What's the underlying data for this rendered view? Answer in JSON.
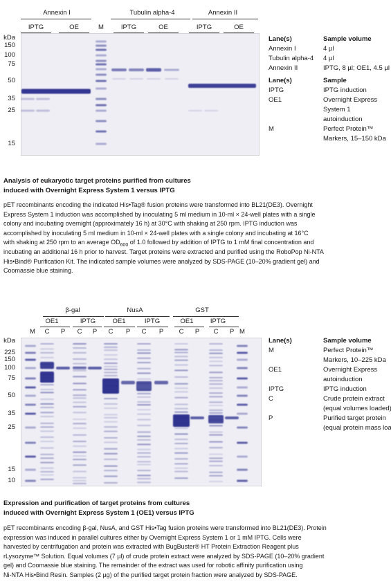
{
  "figures": [
    {
      "gel": {
        "groups": [
          {
            "label": "Annexin I",
            "lanes": [
              "IPTG",
              "OE"
            ]
          },
          {
            "label": "Tubulin alpha-4",
            "lanes": [
              "IPTG",
              "OE"
            ]
          },
          {
            "label": "Annexin II",
            "lanes": [
              "IPTG",
              "OE"
            ]
          }
        ],
        "marker_lane": "M",
        "unit": "kDa",
        "markers": [
          150,
          100,
          75,
          50,
          35,
          25,
          15
        ]
      },
      "legend": {
        "sections": [
          {
            "header": [
              "Lane(s)",
              "Sample volume"
            ],
            "rows": [
              [
                "Annexin I",
                "4 µl"
              ],
              [
                "Tubulin alpha-4",
                "4 µl"
              ],
              [
                "Annexin II",
                "IPTG, 8 µl; OE1, 4.5 µl"
              ]
            ]
          },
          {
            "header": [
              "Lane(s)",
              "Sample"
            ],
            "rows": [
              [
                "IPTG",
                "IPTG induction"
              ],
              [
                "OE1",
                [
                  "Overnight Express",
                  "System 1",
                  "autoinduction"
                ]
              ],
              [
                "M",
                [
                  "Perfect Protein™",
                  "Markers, 15–150 kDa"
                ]
              ]
            ]
          }
        ]
      },
      "caption": {
        "title": [
          "Analysis of eukaryotic target proteins purified from cultures",
          "induced with Overnight Express System 1 versus IPTG"
        ],
        "body": [
          "pET recombinants encoding the indicated His•Tag® fusion proteins were transformed into BL21(DE3). Overnight",
          "Express System 1 induction was accomplished by inoculating 5 ml medium in 10-ml × 24-well plates with a single",
          "colony and incubating overnight (approximately 16 h) at 30°C with shaking at 250 rpm. IPTG induction was",
          "accomplished by inoculating 5 ml medium in 10-ml × 24-well plates with a single colony and incubating at 16°C",
          [
            "with shaking at 250 rpm to an average OD",
            "600",
            " of 1.0 followed by addition of IPTG to 1 mM final concentration and"
          ],
          "incubating an additional 16 h prior to harvest. Target proteins were extracted and purified using the RoboPop Ni-NTA",
          "His•Bind® Purification Kit. The indicated sample volumes were analyzed by SDS-PAGE (10–20% gradient gel) and",
          "Coomassie blue staining."
        ]
      }
    },
    {
      "gel": {
        "groups": [
          {
            "label": "β-gal",
            "conditions": [
              {
                "label": "OE1",
                "lanes": [
                  "C",
                  "P"
                ]
              },
              {
                "label": "IPTG",
                "lanes": [
                  "C",
                  "P"
                ]
              }
            ]
          },
          {
            "label": "NusA",
            "conditions": [
              {
                "label": "OE1",
                "lanes": [
                  "C",
                  "P"
                ]
              },
              {
                "label": "IPTG",
                "lanes": [
                  "C",
                  "P"
                ]
              }
            ]
          },
          {
            "label": "GST",
            "conditions": [
              {
                "label": "OE1",
                "lanes": [
                  "C",
                  "P"
                ]
              },
              {
                "label": "IPTG",
                "lanes": [
                  "C",
                  "P"
                ]
              }
            ]
          }
        ],
        "marker_lanes": [
          "M",
          "M"
        ],
        "unit": "kDa",
        "markers": [
          225,
          150,
          100,
          75,
          50,
          35,
          25,
          15,
          10
        ]
      },
      "legend": {
        "sections": [
          {
            "header": [
              "Lane(s)",
              "Sample volume"
            ],
            "rows": [
              [
                "M",
                [
                  "Perfect Protein™",
                  "Markers, 10–225 kDa"
                ]
              ],
              [
                "OE1",
                [
                  "Overnight Express",
                  "autoinduction"
                ]
              ],
              [
                "IPTG",
                "IPTG induction"
              ],
              [
                "C",
                [
                  "Crude protein extract",
                  "(equal volumes loaded)"
                ]
              ],
              [
                "P",
                [
                  "Purified target protein",
                  "(equal protein mass loaded)"
                ]
              ]
            ]
          }
        ]
      },
      "caption": {
        "title": [
          "Expression and purification of target proteins from cultures",
          "induced with Overnight Express System 1 (OE1) versus IPTG"
        ],
        "body": [
          "pET recombinants encoding β-gal, NusA, and GST His•Tag fusion proteins were transformed into BL21(DE3). Protein",
          "expression was induced in parallel cultures either by Overnight Express System 1 or 1 mM IPTG. Cells were",
          "harvested by centrifugation and protein was extracted with BugBuster® HT Protein Extraction Reagent plus",
          "rLysozyme™ Solution. Equal volumes (7 µl) of crude protein extract were analyzed by SDS-PAGE (10–20% gradient",
          "gel) and Coomassie blue staining. The remainder of the extract was used for robotic affinity purification using",
          "Ni-NTA His•Bind Resin. Samples (2 µg) of the purified target protein fraction were analyzed by SDS-PAGE."
        ]
      }
    }
  ]
}
